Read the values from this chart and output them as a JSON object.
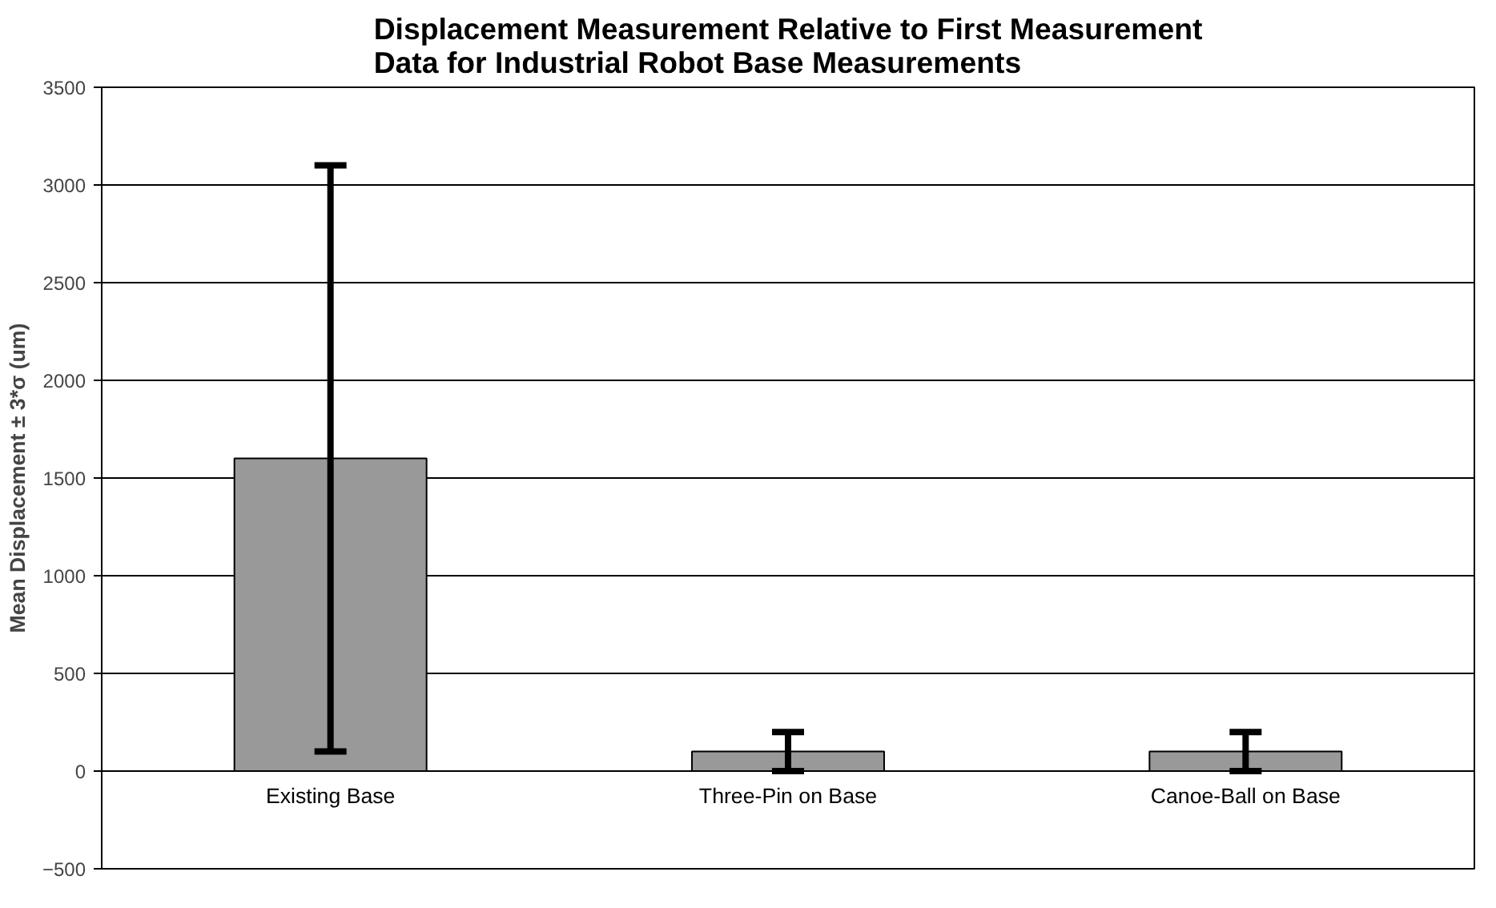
{
  "chart_data": {
    "type": "bar",
    "title": "Displacement Measurement Relative to First Measurement\nData for Industrial Robot Base Measurements",
    "ylabel": "Mean Displacement ± 3*σ (um)",
    "categories": [
      "Existing Base",
      "Three-Pin on Base",
      "Canoe-Ball on Base"
    ],
    "values": [
      1600,
      100,
      100
    ],
    "errors": [
      1500,
      100,
      100
    ],
    "color": "#999999",
    "ylim": [
      -500,
      3500
    ],
    "yticks": [
      -500,
      0,
      500,
      1000,
      1500,
      2000,
      2500,
      3000,
      3500
    ],
    "grid": "y"
  }
}
